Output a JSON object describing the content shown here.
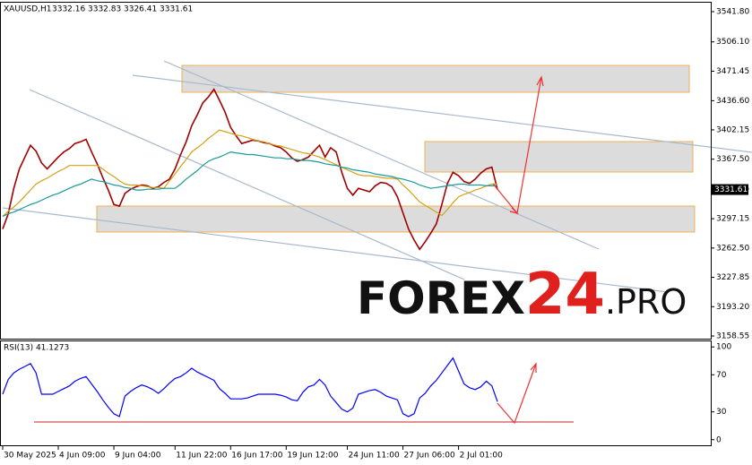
{
  "chart_data": [
    {
      "type": "line",
      "symbol": "XAUUSD,H1",
      "ohlc": [
        3332.16,
        3332.83,
        3326.41,
        3331.61
      ],
      "watermark": {
        "brand": "FOREX",
        "number": "24",
        "domain": ".PRO"
      },
      "categories": [
        "30 May 2025",
        null,
        null,
        null,
        null,
        null,
        null,
        null,
        null,
        null,
        "4 Jun 09:00",
        null,
        null,
        null,
        null,
        null,
        null,
        null,
        null,
        null,
        "9 Jun 04:00",
        null,
        null,
        null,
        null,
        null,
        null,
        null,
        null,
        null,
        null,
        "11 Jun 22:00",
        null,
        null,
        null,
        null,
        null,
        null,
        null,
        null,
        null,
        "16 Jun 17:00",
        null,
        null,
        null,
        null,
        null,
        null,
        null,
        null,
        null,
        "19 Jun 12:00",
        null,
        null,
        null,
        null,
        null,
        null,
        null,
        null,
        null,
        null,
        "24 Jun 11:00",
        null,
        null,
        null,
        null,
        null,
        null,
        null,
        null,
        null,
        "27 Jun 06:00",
        null,
        null,
        null,
        null,
        null,
        null,
        null,
        null,
        null,
        "2 Jul 01:00",
        null,
        null,
        null,
        null,
        null,
        null,
        null
      ],
      "series": [
        {
          "color": "#a00000",
          "values": [
            3285,
            3303,
            3333,
            3356,
            3370,
            3384,
            3377,
            3363,
            3356,
            3363,
            3370,
            3376,
            3380,
            3386,
            3388,
            3391,
            3376,
            3362,
            3346,
            3331,
            3314,
            3312,
            3327,
            3332,
            3335,
            3337,
            3336,
            3333,
            3335,
            3340,
            3344,
            3356,
            3373,
            3388,
            3407,
            3420,
            3434,
            3441,
            3450,
            3437,
            3423,
            3405,
            3395,
            3386,
            3388,
            3390,
            3389,
            3387,
            3386,
            3383,
            3381,
            3376,
            3369,
            3365,
            3367,
            3370,
            3377,
            3384,
            3370,
            3381,
            3376,
            3352,
            3333,
            3325,
            3333,
            3331,
            3329,
            3336,
            3340,
            3339,
            3335,
            3323,
            3304,
            3285,
            3272,
            3261,
            3270,
            3280,
            3291,
            3314,
            3339,
            3352,
            3348,
            3341,
            3339,
            3344,
            3351,
            3356,
            3358,
            3331.61
          ]
        },
        {
          "color": "#d4a017",
          "values": [
            3300,
            3306,
            3311,
            3317,
            3324,
            3331,
            3338,
            3342,
            3345,
            3349,
            3353,
            3356,
            3360,
            3360,
            3360,
            3360,
            3360,
            3360,
            3356,
            3351,
            3347,
            3342,
            3338,
            3337,
            3337,
            3336,
            3335,
            3334,
            3334,
            3333,
            3342,
            3350,
            3359,
            3367,
            3376,
            3381,
            3386,
            3392,
            3397,
            3402,
            3400,
            3398,
            3396,
            3395,
            3393,
            3391,
            3389,
            3388,
            3386,
            3384,
            3383,
            3381,
            3379,
            3377,
            3375,
            3374,
            3372,
            3370,
            3367,
            3364,
            3361,
            3358,
            3355,
            3352,
            3349,
            3348,
            3348,
            3347,
            3346,
            3345,
            3345,
            3344,
            3337,
            3331,
            3324,
            3317,
            3313,
            3309,
            3305,
            3301,
            3308,
            3316,
            3323,
            3326,
            3328,
            3331,
            3333,
            3336,
            3338,
            3338
          ]
        },
        {
          "color": "#1a9a9a",
          "values": [
            3300,
            3303,
            3305,
            3308,
            3311,
            3314,
            3316,
            3319,
            3322,
            3325,
            3327,
            3330,
            3333,
            3336,
            3338,
            3341,
            3344,
            3342,
            3341,
            3339,
            3337,
            3336,
            3334,
            3333,
            3331,
            3331,
            3332,
            3332,
            3332,
            3333,
            3333,
            3333,
            3338,
            3344,
            3349,
            3354,
            3360,
            3365,
            3368,
            3370,
            3373,
            3376,
            3375,
            3374,
            3373,
            3373,
            3372,
            3371,
            3370,
            3369,
            3369,
            3368,
            3368,
            3367,
            3366,
            3366,
            3365,
            3364,
            3362,
            3361,
            3360,
            3358,
            3357,
            3355,
            3354,
            3353,
            3352,
            3350,
            3349,
            3348,
            3347,
            3345,
            3344,
            3342,
            3340,
            3337,
            3335,
            3333,
            3334,
            3335,
            3336,
            3337,
            3338,
            3338,
            3337,
            3337,
            3337,
            3336,
            3336,
            3336
          ]
        }
      ],
      "ylim": [
        3155.4,
        3552.4
      ],
      "yticks": [
        {
          "value": 3541.8,
          "label": "3541.80"
        },
        {
          "value": 3506.1,
          "label": "3506.10"
        },
        3471.45,
        {
          "value": 3436.6,
          "label": "3436.60"
        },
        3402.15,
        {
          "value": 3367.5,
          "label": "3367.50"
        },
        3332.85,
        3297.15,
        {
          "value": 3262.5,
          "label": "3262.50"
        },
        3227.85,
        {
          "value": 3193.2,
          "label": "3193.20"
        },
        3158.55
      ]
    },
    {
      "type": "line",
      "title": "RSI(13) 41.1273",
      "series": [
        {
          "color": "#0000ff",
          "values": [
            49,
            65,
            72,
            76,
            79,
            82,
            72,
            49,
            49,
            49,
            52,
            55,
            58,
            63,
            66,
            68,
            60,
            52,
            43,
            35,
            28,
            25,
            47,
            52,
            56,
            59,
            57,
            54,
            50,
            55,
            61,
            66,
            68,
            72,
            77,
            73,
            70,
            67,
            64,
            55,
            50,
            44,
            44,
            44,
            45,
            47,
            49,
            49,
            49,
            49,
            48,
            46,
            43,
            42,
            51,
            57,
            59,
            65,
            59,
            47,
            40,
            33,
            30,
            34,
            49,
            51,
            53,
            54,
            51,
            47,
            45,
            43,
            28,
            25,
            28,
            45,
            50,
            58,
            64,
            72,
            80,
            88,
            74,
            60,
            56,
            54,
            57,
            63,
            58,
            41
          ]
        }
      ],
      "ylim": [
        -7,
        106
      ],
      "yticks": [
        100,
        70,
        30,
        0
      ]
    }
  ]
}
